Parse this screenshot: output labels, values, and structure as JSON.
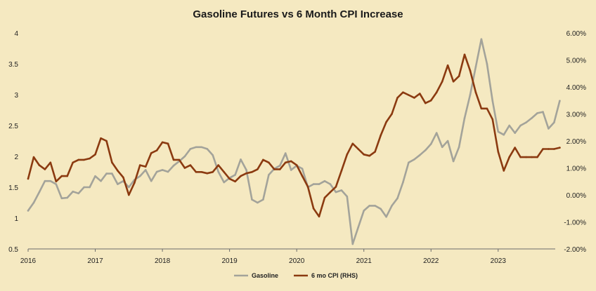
{
  "chart_data": {
    "type": "line",
    "title": "Gasoline Futures vs 6 Month CPI Increase",
    "xlabel": "",
    "ylabel": "",
    "xlim": [
      2016,
      2023.85
    ],
    "x_ticks": [
      {
        "value": 2016,
        "label": "2016"
      },
      {
        "value": 2017,
        "label": "2017"
      },
      {
        "value": 2018,
        "label": "2018"
      },
      {
        "value": 2019,
        "label": "2019"
      },
      {
        "value": 2020,
        "label": "2020"
      },
      {
        "value": 2021,
        "label": "2021"
      },
      {
        "value": 2022,
        "label": "2022"
      },
      {
        "value": 2023,
        "label": "2023"
      }
    ],
    "y_left": {
      "ylim": [
        0.5,
        4
      ],
      "ticks": [
        {
          "value": 4,
          "label": "4"
        },
        {
          "value": 3.5,
          "label": "3.5"
        },
        {
          "value": 3,
          "label": "3"
        },
        {
          "value": 2.5,
          "label": "2.5"
        },
        {
          "value": 2,
          "label": "2"
        },
        {
          "value": 1.5,
          "label": "1.5"
        },
        {
          "value": 1,
          "label": "1"
        },
        {
          "value": 0.5,
          "label": "0.5"
        }
      ]
    },
    "y_right": {
      "ylim": [
        -2,
        6
      ],
      "ticks": [
        {
          "value": 6,
          "label": "6.00%"
        },
        {
          "value": 5,
          "label": "5.00%"
        },
        {
          "value": 4,
          "label": "4.00%"
        },
        {
          "value": 3,
          "label": "3.00%"
        },
        {
          "value": 2,
          "label": "2.00%"
        },
        {
          "value": 1,
          "label": "1.00%"
        },
        {
          "value": 0,
          "label": "0.00%"
        },
        {
          "value": -1,
          "label": "-1.00%"
        },
        {
          "value": -2,
          "label": "-2.00%"
        }
      ]
    },
    "grid": false,
    "legend_position": "bottom-center",
    "series": [
      {
        "name": "Gasoline",
        "axis": "left",
        "color": "#a3a39a",
        "x_start": 2016,
        "x_step": 0.0833333,
        "values": [
          1.12,
          1.25,
          1.42,
          1.6,
          1.6,
          1.55,
          1.32,
          1.33,
          1.43,
          1.4,
          1.5,
          1.5,
          1.68,
          1.6,
          1.72,
          1.72,
          1.55,
          1.6,
          1.5,
          1.62,
          1.68,
          1.78,
          1.6,
          1.75,
          1.78,
          1.75,
          1.85,
          1.92,
          2.0,
          2.12,
          2.15,
          2.15,
          2.12,
          2.02,
          1.75,
          1.58,
          1.65,
          1.7,
          1.95,
          1.78,
          1.3,
          1.25,
          1.3,
          1.7,
          1.8,
          1.85,
          2.05,
          1.78,
          1.85,
          1.8,
          1.5,
          1.55,
          1.55,
          1.6,
          1.55,
          1.42,
          1.45,
          1.35,
          0.58,
          0.85,
          1.12,
          1.2,
          1.2,
          1.15,
          1.02,
          1.2,
          1.32,
          1.58,
          1.9,
          1.95,
          2.02,
          2.1,
          2.2,
          2.38,
          2.15,
          2.25,
          1.92,
          2.15,
          2.62,
          3.0,
          3.45,
          3.9,
          3.5,
          2.9,
          2.4,
          2.35,
          2.5,
          2.38,
          2.5,
          2.55,
          2.62,
          2.7,
          2.72,
          2.45,
          2.55,
          2.9
        ]
      },
      {
        "name": "6 mo CPI (RHS)",
        "axis": "right",
        "color": "#8b3a10",
        "x_start": 2016,
        "x_step": 0.0833333,
        "values": [
          0.6,
          1.4,
          1.1,
          0.95,
          1.2,
          0.5,
          0.7,
          0.7,
          1.2,
          1.3,
          1.3,
          1.35,
          1.5,
          2.1,
          2.0,
          1.2,
          0.9,
          0.65,
          0.0,
          0.45,
          1.1,
          1.05,
          1.55,
          1.65,
          1.95,
          1.9,
          1.3,
          1.3,
          1.0,
          1.1,
          0.85,
          0.85,
          0.8,
          0.85,
          1.1,
          0.85,
          0.6,
          0.5,
          0.7,
          0.8,
          0.85,
          0.95,
          1.3,
          1.2,
          0.95,
          0.95,
          1.2,
          1.25,
          1.1,
          0.7,
          0.3,
          -0.5,
          -0.8,
          -0.1,
          0.1,
          0.3,
          0.9,
          1.5,
          1.9,
          1.7,
          1.5,
          1.45,
          1.6,
          2.2,
          2.7,
          3.0,
          3.6,
          3.8,
          3.7,
          3.6,
          3.75,
          3.4,
          3.5,
          3.8,
          4.2,
          4.8,
          4.2,
          4.4,
          5.2,
          4.6,
          3.8,
          3.2,
          3.2,
          2.8,
          1.6,
          0.9,
          1.4,
          1.75,
          1.4,
          1.4,
          1.4,
          1.4,
          1.7,
          1.7,
          1.7,
          1.75
        ]
      }
    ]
  }
}
